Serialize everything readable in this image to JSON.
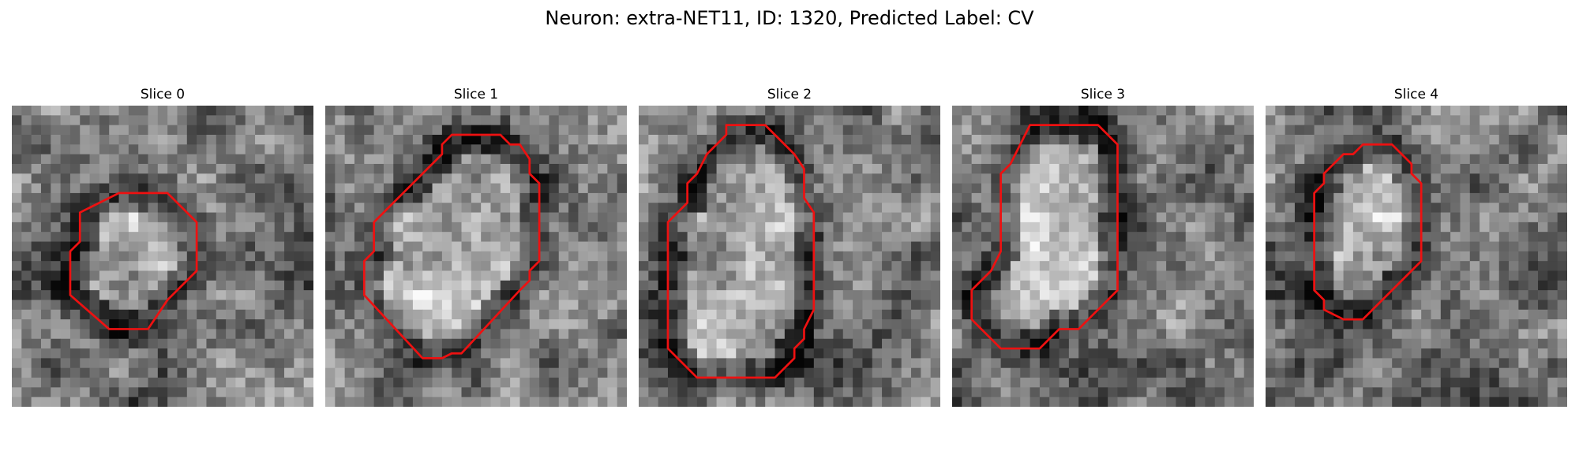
{
  "figure": {
    "title": "Neuron: extra-NET11, ID: 1320, Predicted Label: CV"
  },
  "panels": [
    {
      "title": "Slice 0",
      "contour_color": "#ee1111",
      "contour": [
        [
          11,
          9
        ],
        [
          16,
          9
        ],
        [
          19,
          12
        ],
        [
          19,
          17
        ],
        [
          16,
          20
        ],
        [
          14,
          23
        ],
        [
          10,
          23
        ],
        [
          6,
          19.5
        ],
        [
          6,
          15
        ],
        [
          7,
          14
        ],
        [
          7,
          11
        ]
      ]
    },
    {
      "title": "Slice 1",
      "contour_color": "#ee1111",
      "contour": [
        [
          13,
          3
        ],
        [
          18,
          3
        ],
        [
          19,
          4
        ],
        [
          20,
          4
        ],
        [
          21,
          5.5
        ],
        [
          21,
          7
        ],
        [
          22,
          8
        ],
        [
          22,
          16
        ],
        [
          21,
          17
        ],
        [
          21,
          18
        ],
        [
          20,
          19
        ],
        [
          14,
          25.5
        ],
        [
          13,
          25.5
        ],
        [
          12,
          26
        ],
        [
          10,
          26
        ],
        [
          4,
          19.5
        ],
        [
          4,
          16
        ],
        [
          5,
          15
        ],
        [
          5,
          12
        ],
        [
          7,
          10
        ],
        [
          10,
          7
        ],
        [
          11,
          6
        ],
        [
          12,
          5
        ],
        [
          12,
          4
        ]
      ]
    },
    {
      "title": "Slice 2",
      "contour_color": "#ee1111",
      "contour": [
        [
          9,
          2
        ],
        [
          13,
          2
        ],
        [
          16,
          5
        ],
        [
          17,
          6.5
        ],
        [
          17,
          9.5
        ],
        [
          18,
          11
        ],
        [
          18,
          21
        ],
        [
          17,
          23
        ],
        [
          17,
          24
        ],
        [
          16,
          25
        ],
        [
          16,
          26
        ],
        [
          14,
          28
        ],
        [
          6,
          28
        ],
        [
          4,
          26
        ],
        [
          3,
          25
        ],
        [
          3,
          12
        ],
        [
          4,
          11
        ],
        [
          5,
          10
        ],
        [
          5,
          8
        ],
        [
          6,
          7
        ],
        [
          7,
          5
        ],
        [
          8,
          4
        ],
        [
          9,
          3
        ]
      ]
    },
    {
      "title": "Slice 3",
      "contour_color": "#ee1111",
      "contour": [
        [
          8,
          2
        ],
        [
          15,
          2
        ],
        [
          16,
          3
        ],
        [
          17,
          4
        ],
        [
          17,
          19
        ],
        [
          16,
          20
        ],
        [
          14,
          22
        ],
        [
          13,
          23
        ],
        [
          11,
          23
        ],
        [
          10,
          24
        ],
        [
          9,
          25
        ],
        [
          5,
          25
        ],
        [
          3,
          23
        ],
        [
          2,
          22
        ],
        [
          2,
          19
        ],
        [
          3,
          18
        ],
        [
          4,
          17
        ],
        [
          5,
          15
        ],
        [
          5,
          7
        ],
        [
          6,
          6
        ],
        [
          7,
          4
        ]
      ]
    },
    {
      "title": "Slice 4",
      "contour_color": "#ee1111",
      "contour": [
        [
          10,
          4
        ],
        [
          13,
          4
        ],
        [
          14,
          5
        ],
        [
          15,
          6
        ],
        [
          15,
          7
        ],
        [
          16,
          8
        ],
        [
          16,
          9
        ],
        [
          16,
          16
        ],
        [
          15,
          17
        ],
        [
          10,
          22
        ],
        [
          9,
          22
        ],
        [
          8,
          22
        ],
        [
          7,
          21.5
        ],
        [
          6,
          21
        ],
        [
          6,
          20
        ],
        [
          5,
          19
        ],
        [
          5,
          18
        ],
        [
          5,
          9
        ],
        [
          6,
          8
        ],
        [
          6,
          7
        ],
        [
          7,
          6
        ],
        [
          8,
          5
        ],
        [
          9,
          5
        ]
      ]
    }
  ]
}
